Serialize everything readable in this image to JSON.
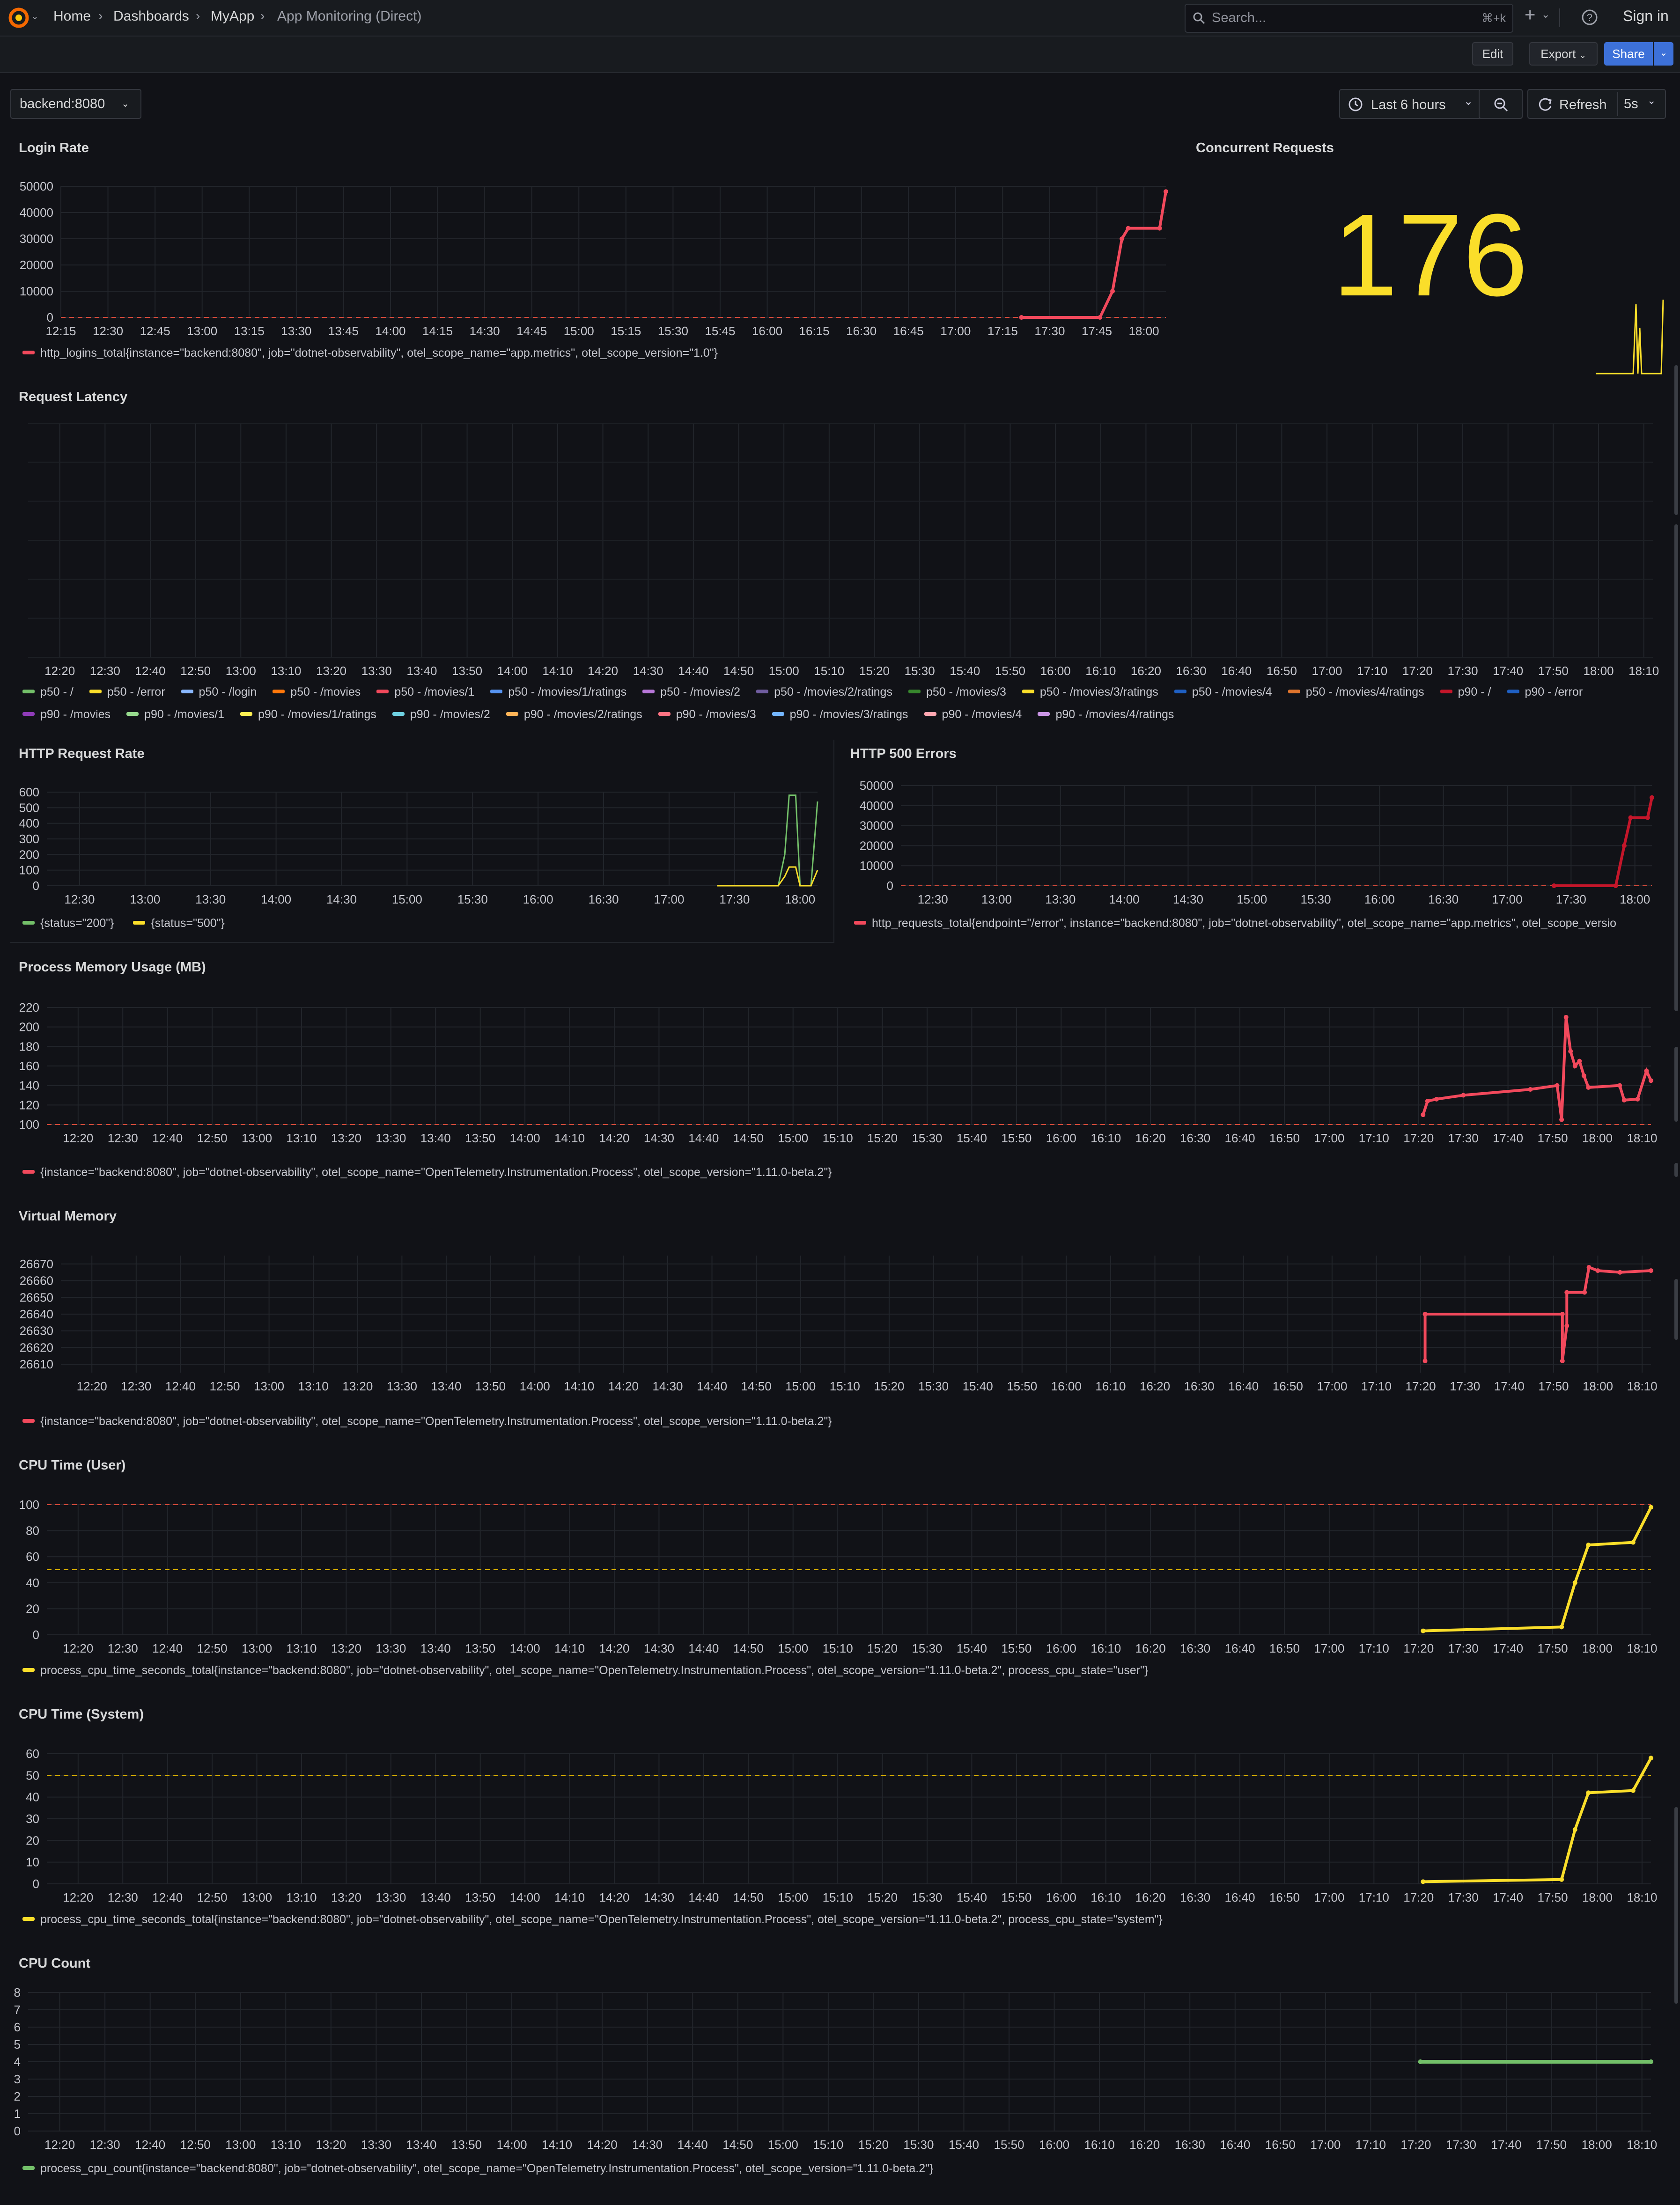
{
  "topbar": {
    "breadcrumbs": [
      "Home",
      "Dashboards",
      "MyApp",
      "App Monitoring (Direct)"
    ],
    "search_placeholder": "Search...",
    "search_shortcut": "⌘+k",
    "plus_icon": "plus-icon",
    "help_icon": "help-icon",
    "sign_in": "Sign in"
  },
  "toolbar": {
    "edit": "Edit",
    "export": "Export",
    "share": "Share"
  },
  "variables": {
    "instance": "backend:8080"
  },
  "time_controls": {
    "range": "Last 6 hours",
    "refresh": "Refresh",
    "interval": "5s"
  },
  "colors": {
    "red": "#f2495c",
    "yellow": "#fade2a",
    "green": "#73bf69",
    "threshold": "#d44a3a"
  },
  "panels": {
    "login_rate": {
      "title": "Login Rate",
      "legend": "http_logins_total{instance=\"backend:8080\", job=\"dotnet-observability\", otel_scope_name=\"app.metrics\", otel_scope_version=\"1.0\"}"
    },
    "concurrent": {
      "title": "Concurrent Requests",
      "value": "176"
    },
    "latency": {
      "title": "Request Latency",
      "legend": [
        "p50 - /",
        "p50 - /error",
        "p50 - /login",
        "p50 - /movies",
        "p50 - /movies/1",
        "p50 - /movies/1/ratings",
        "p50 - /movies/2",
        "p50 - /movies/2/ratings",
        "p50 - /movies/3",
        "p50 - /movies/3/ratings",
        "p50 - /movies/4",
        "p50 - /movies/4/ratings",
        "p90 - /",
        "p90 - /error",
        "p90 - /movies",
        "p90 - /movies/1",
        "p90 - /movies/1/ratings",
        "p90 - /movies/2",
        "p90 - /movies/2/ratings",
        "p90 - /movies/3",
        "p90 - /movies/3/ratings",
        "p90 - /movies/4",
        "p90 - /movies/4/ratings"
      ],
      "legend_colors": [
        "#73bf69",
        "#fade2a",
        "#8ab8ff",
        "#ff780a",
        "#f2495c",
        "#5794f2",
        "#b877d9",
        "#705da0",
        "#37872d",
        "#fade2a",
        "#1f60c4",
        "#e0752d",
        "#c4162a",
        "#1f60c4",
        "#8f3bb8",
        "#96d98d",
        "#ffee52",
        "#6ed0e0",
        "#ffb357",
        "#ff7383",
        "#73b4ff",
        "#ffa6b0",
        "#ca95e5"
      ]
    },
    "http_rate": {
      "title": "HTTP Request Rate",
      "legend": [
        "{status=\"200\"}",
        "{status=\"500\"}"
      ]
    },
    "http500": {
      "title": "HTTP 500 Errors",
      "legend": "http_requests_total{endpoint=\"/error\", instance=\"backend:8080\", job=\"dotnet-observability\", otel_scope_name=\"app.metrics\", otel_scope_versio"
    },
    "memory": {
      "title": "Process Memory Usage (MB)",
      "legend": "{instance=\"backend:8080\", job=\"dotnet-observability\", otel_scope_name=\"OpenTelemetry.Instrumentation.Process\", otel_scope_version=\"1.11.0-beta.2\"}"
    },
    "virtual": {
      "title": "Virtual Memory",
      "legend": "{instance=\"backend:8080\", job=\"dotnet-observability\", otel_scope_name=\"OpenTelemetry.Instrumentation.Process\", otel_scope_version=\"1.11.0-beta.2\"}"
    },
    "cpu_user": {
      "title": "CPU Time (User)",
      "legend": "process_cpu_time_seconds_total{instance=\"backend:8080\", job=\"dotnet-observability\", otel_scope_name=\"OpenTelemetry.Instrumentation.Process\", otel_scope_version=\"1.11.0-beta.2\", process_cpu_state=\"user\"}"
    },
    "cpu_system": {
      "title": "CPU Time (System)",
      "legend": "process_cpu_time_seconds_total{instance=\"backend:8080\", job=\"dotnet-observability\", otel_scope_name=\"OpenTelemetry.Instrumentation.Process\", otel_scope_version=\"1.11.0-beta.2\", process_cpu_state=\"system\"}"
    },
    "cpu_count": {
      "title": "CPU Count",
      "legend": "process_cpu_count{instance=\"backend:8080\", job=\"dotnet-observability\", otel_scope_name=\"OpenTelemetry.Instrumentation.Process\", otel_scope_version=\"1.11.0-beta.2\"}"
    }
  },
  "chart_data": [
    {
      "id": "login_rate",
      "type": "line",
      "title": "Login Rate",
      "x_ticks": [
        "12:15",
        "12:30",
        "12:45",
        "13:00",
        "13:15",
        "13:30",
        "13:45",
        "14:00",
        "14:15",
        "14:30",
        "14:45",
        "15:00",
        "15:15",
        "15:30",
        "15:45",
        "16:00",
        "16:15",
        "16:30",
        "16:45",
        "17:00",
        "17:15",
        "17:30",
        "17:45",
        "18:00"
      ],
      "y_ticks": [
        "0",
        "10000",
        "20000",
        "30000",
        "40000",
        "50000"
      ],
      "ylim": [
        0,
        50000
      ],
      "series": [
        {
          "x": [
            "17:21",
            "17:46",
            "17:50",
            "17:53",
            "17:55",
            "18:05",
            "18:07"
          ],
          "values": [
            0,
            0,
            10000,
            30000,
            34000,
            34000,
            48000
          ]
        }
      ]
    },
    {
      "id": "concurrent",
      "type": "line",
      "value": 176
    },
    {
      "id": "latency",
      "type": "line",
      "title": "Request Latency",
      "x_ticks": [
        "12:20",
        "12:30",
        "12:40",
        "12:50",
        "13:00",
        "13:10",
        "13:20",
        "13:30",
        "13:40",
        "13:50",
        "14:00",
        "14:10",
        "14:20",
        "14:30",
        "14:40",
        "14:50",
        "15:00",
        "15:10",
        "15:20",
        "15:30",
        "15:40",
        "15:50",
        "16:00",
        "16:10",
        "16:20",
        "16:30",
        "16:40",
        "16:50",
        "17:00",
        "17:10",
        "17:20",
        "17:30",
        "17:40",
        "17:50",
        "18:00",
        "18:10"
      ]
    },
    {
      "id": "http_rate",
      "type": "line",
      "title": "HTTP Request Rate",
      "x_ticks": [
        "12:30",
        "13:00",
        "13:30",
        "14:00",
        "14:30",
        "15:00",
        "15:30",
        "16:00",
        "16:30",
        "17:00",
        "17:30",
        "18:00"
      ],
      "y_ticks": [
        "0",
        "100",
        "200",
        "300",
        "400",
        "500",
        "600"
      ],
      "ylim": [
        0,
        600
      ],
      "series": [
        {
          "name": "{status=\"200\"}",
          "x": [
            "17:22",
            "17:50",
            "17:53",
            "17:55",
            "17:58",
            "18:00",
            "18:05",
            "18:08"
          ],
          "values": [
            0,
            0,
            200,
            580,
            580,
            0,
            0,
            540
          ]
        },
        {
          "name": "{status=\"500\"}",
          "x": [
            "17:22",
            "17:50",
            "17:53",
            "17:55",
            "17:58",
            "18:00",
            "18:05",
            "18:08"
          ],
          "values": [
            0,
            0,
            60,
            120,
            120,
            0,
            0,
            100
          ]
        }
      ]
    },
    {
      "id": "http500",
      "type": "line",
      "title": "HTTP 500 Errors",
      "x_ticks": [
        "12:30",
        "13:00",
        "13:30",
        "14:00",
        "14:30",
        "15:00",
        "15:30",
        "16:00",
        "16:30",
        "17:00",
        "17:30",
        "18:00"
      ],
      "y_ticks": [
        "0",
        "10000",
        "20000",
        "30000",
        "40000",
        "50000"
      ],
      "ylim": [
        0,
        50000
      ],
      "series": [
        {
          "x": [
            "17:22",
            "17:51",
            "17:55",
            "17:58",
            "18:06",
            "18:08"
          ],
          "values": [
            0,
            0,
            20000,
            34000,
            34000,
            44000
          ]
        }
      ]
    },
    {
      "id": "memory",
      "type": "line",
      "title": "Process Memory Usage (MB)",
      "x_ticks": [
        "12:20",
        "12:30",
        "12:40",
        "12:50",
        "13:00",
        "13:10",
        "13:20",
        "13:30",
        "13:40",
        "13:50",
        "14:00",
        "14:10",
        "14:20",
        "14:30",
        "14:40",
        "14:50",
        "15:00",
        "15:10",
        "15:20",
        "15:30",
        "15:40",
        "15:50",
        "16:00",
        "16:10",
        "16:20",
        "16:30",
        "16:40",
        "16:50",
        "17:00",
        "17:10",
        "17:20",
        "17:30",
        "17:40",
        "17:50",
        "18:00",
        "18:10"
      ],
      "y_ticks": [
        "100",
        "120",
        "140",
        "160",
        "180",
        "200",
        "220"
      ],
      "ylim": [
        100,
        220
      ],
      "series": [
        {
          "x": [
            "17:21",
            "17:22",
            "17:24",
            "17:30",
            "17:45",
            "17:51",
            "17:52",
            "17:53",
            "17:54",
            "17:55",
            "17:56",
            "17:57",
            "17:58",
            "18:05",
            "18:06",
            "18:09",
            "18:11",
            "18:12"
          ],
          "values": [
            110,
            124,
            126,
            130,
            136,
            140,
            105,
            210,
            175,
            160,
            165,
            150,
            138,
            140,
            125,
            126,
            155,
            145
          ]
        }
      ]
    },
    {
      "id": "virtual",
      "type": "line",
      "title": "Virtual Memory",
      "x_ticks": [
        "12:20",
        "12:30",
        "12:40",
        "12:50",
        "13:00",
        "13:10",
        "13:20",
        "13:30",
        "13:40",
        "13:50",
        "14:00",
        "14:10",
        "14:20",
        "14:30",
        "14:40",
        "14:50",
        "15:00",
        "15:10",
        "15:20",
        "15:30",
        "15:40",
        "15:50",
        "16:00",
        "16:10",
        "16:20",
        "16:30",
        "16:40",
        "16:50",
        "17:00",
        "17:10",
        "17:20",
        "17:30",
        "17:40",
        "17:50",
        "18:00",
        "18:10"
      ],
      "y_ticks": [
        "26610",
        "26620",
        "26630",
        "26640",
        "26650",
        "26660",
        "26670"
      ],
      "ylim": [
        26605,
        26675
      ],
      "series": [
        {
          "x": [
            "17:21",
            "17:21",
            "17:52",
            "17:52",
            "17:53",
            "17:53",
            "17:57",
            "17:58",
            "18:00",
            "18:05",
            "18:12"
          ],
          "values": [
            26612,
            26640,
            26640,
            26612,
            26633,
            26653,
            26653,
            26668,
            26666,
            26665,
            26666
          ]
        }
      ]
    },
    {
      "id": "cpu_user",
      "type": "line",
      "title": "CPU Time (User)",
      "x_ticks": [
        "12:20",
        "12:30",
        "12:40",
        "12:50",
        "13:00",
        "13:10",
        "13:20",
        "13:30",
        "13:40",
        "13:50",
        "14:00",
        "14:10",
        "14:20",
        "14:30",
        "14:40",
        "14:50",
        "15:00",
        "15:10",
        "15:20",
        "15:30",
        "15:40",
        "15:50",
        "16:00",
        "16:10",
        "16:20",
        "16:30",
        "16:40",
        "16:50",
        "17:00",
        "17:10",
        "17:20",
        "17:30",
        "17:40",
        "17:50",
        "18:00",
        "18:10"
      ],
      "y_ticks": [
        "0",
        "20",
        "40",
        "60",
        "80",
        "100"
      ],
      "ylim": [
        0,
        100
      ],
      "thresholds": [
        100,
        50
      ],
      "series": [
        {
          "x": [
            "17:21",
            "17:52",
            "17:55",
            "17:58",
            "18:08",
            "18:12"
          ],
          "values": [
            3,
            6,
            40,
            69,
            71,
            98
          ]
        }
      ]
    },
    {
      "id": "cpu_system",
      "type": "line",
      "title": "CPU Time (System)",
      "x_ticks": [
        "12:20",
        "12:30",
        "12:40",
        "12:50",
        "13:00",
        "13:10",
        "13:20",
        "13:30",
        "13:40",
        "13:50",
        "14:00",
        "14:10",
        "14:20",
        "14:30",
        "14:40",
        "14:50",
        "15:00",
        "15:10",
        "15:20",
        "15:30",
        "15:40",
        "15:50",
        "16:00",
        "16:10",
        "16:20",
        "16:30",
        "16:40",
        "16:50",
        "17:00",
        "17:10",
        "17:20",
        "17:30",
        "17:40",
        "17:50",
        "18:00",
        "18:10"
      ],
      "y_ticks": [
        "0",
        "10",
        "20",
        "30",
        "40",
        "50",
        "60"
      ],
      "ylim": [
        0,
        60
      ],
      "thresholds": [
        50
      ],
      "series": [
        {
          "x": [
            "17:21",
            "17:52",
            "17:55",
            "17:58",
            "18:08",
            "18:12"
          ],
          "values": [
            1,
            2,
            25,
            42,
            43,
            58
          ]
        }
      ]
    },
    {
      "id": "cpu_count",
      "type": "line",
      "title": "CPU Count",
      "x_ticks": [
        "12:20",
        "12:30",
        "12:40",
        "12:50",
        "13:00",
        "13:10",
        "13:20",
        "13:30",
        "13:40",
        "13:50",
        "14:00",
        "14:10",
        "14:20",
        "14:30",
        "14:40",
        "14:50",
        "15:00",
        "15:10",
        "15:20",
        "15:30",
        "15:40",
        "15:50",
        "16:00",
        "16:10",
        "16:20",
        "16:30",
        "16:40",
        "16:50",
        "17:00",
        "17:10",
        "17:20",
        "17:30",
        "17:40",
        "17:50",
        "18:00",
        "18:10"
      ],
      "y_ticks": [
        "0",
        "1",
        "2",
        "3",
        "4",
        "5",
        "6",
        "7",
        "8"
      ],
      "ylim": [
        0,
        8
      ],
      "series": [
        {
          "x": [
            "17:21",
            "18:12"
          ],
          "values": [
            4,
            4
          ]
        }
      ]
    }
  ]
}
